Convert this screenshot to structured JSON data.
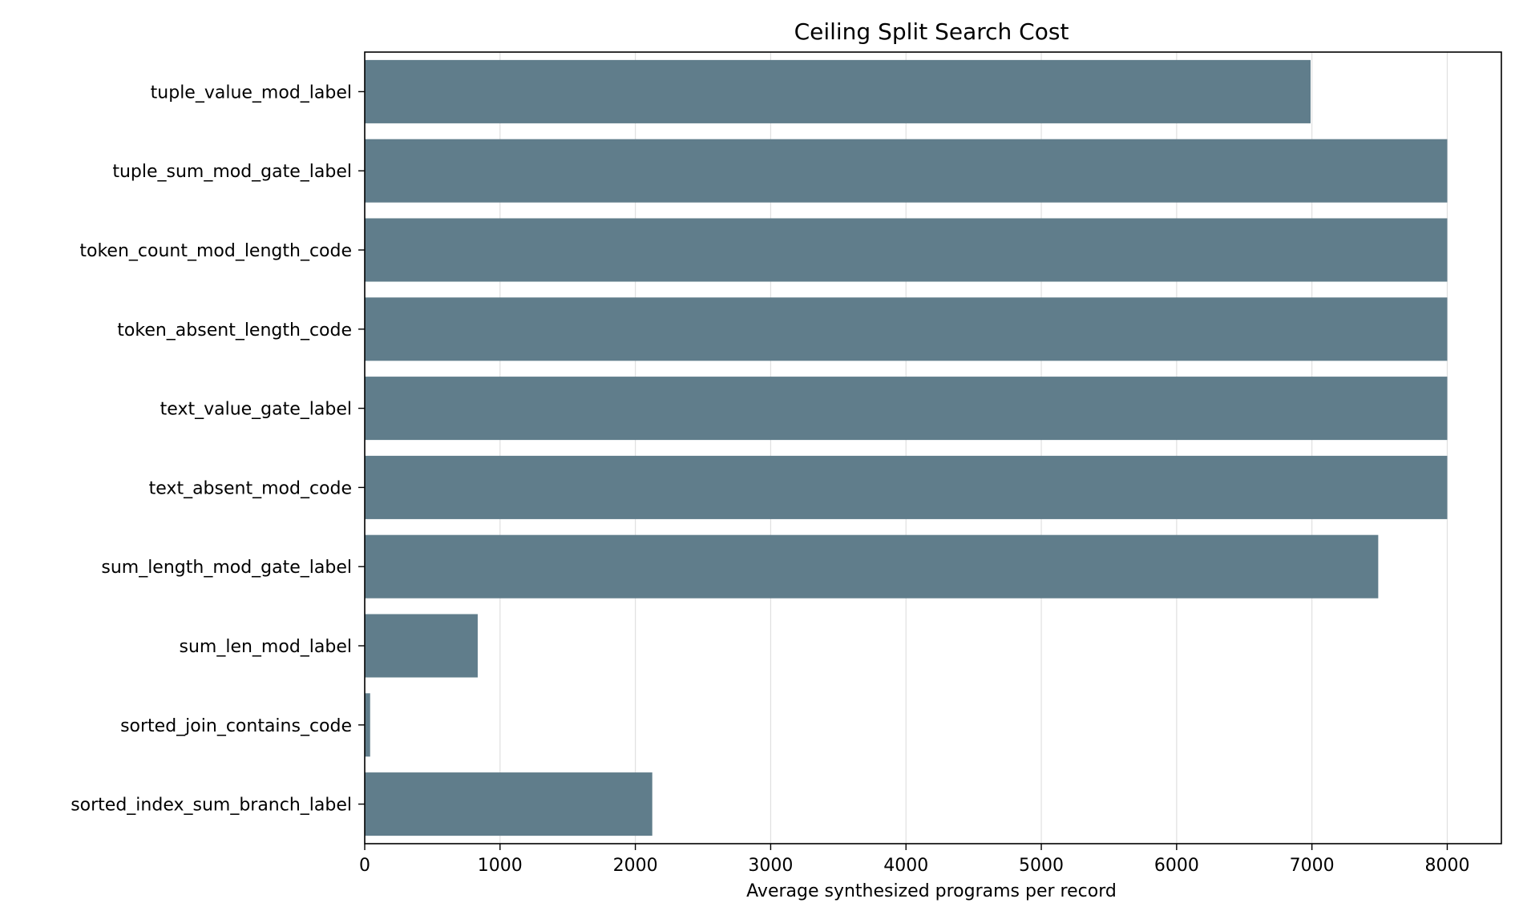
{
  "colors": {
    "bar": "#607d8b",
    "grid": "#e0e0e0",
    "axis": "#000000",
    "background": "#ffffff"
  },
  "chart_data": {
    "type": "bar",
    "orientation": "horizontal",
    "title": "Ceiling Split Search Cost",
    "xlabel": "Average synthesized programs per record",
    "ylabel": "",
    "xlim": [
      0,
      8400
    ],
    "xticks": [
      0,
      1000,
      2000,
      3000,
      4000,
      5000,
      6000,
      7000,
      8000
    ],
    "grid": "vertical",
    "categories": [
      "tuple_value_mod_label",
      "tuple_sum_mod_gate_label",
      "token_count_mod_length_code",
      "token_absent_length_code",
      "text_value_gate_label",
      "text_absent_mod_code",
      "sum_length_mod_gate_label",
      "sum_len_mod_label",
      "sorted_join_contains_code",
      "sorted_index_sum_branch_label"
    ],
    "values": [
      6990,
      8000,
      8000,
      8000,
      8000,
      8000,
      7490,
      835,
      40,
      2125
    ]
  }
}
